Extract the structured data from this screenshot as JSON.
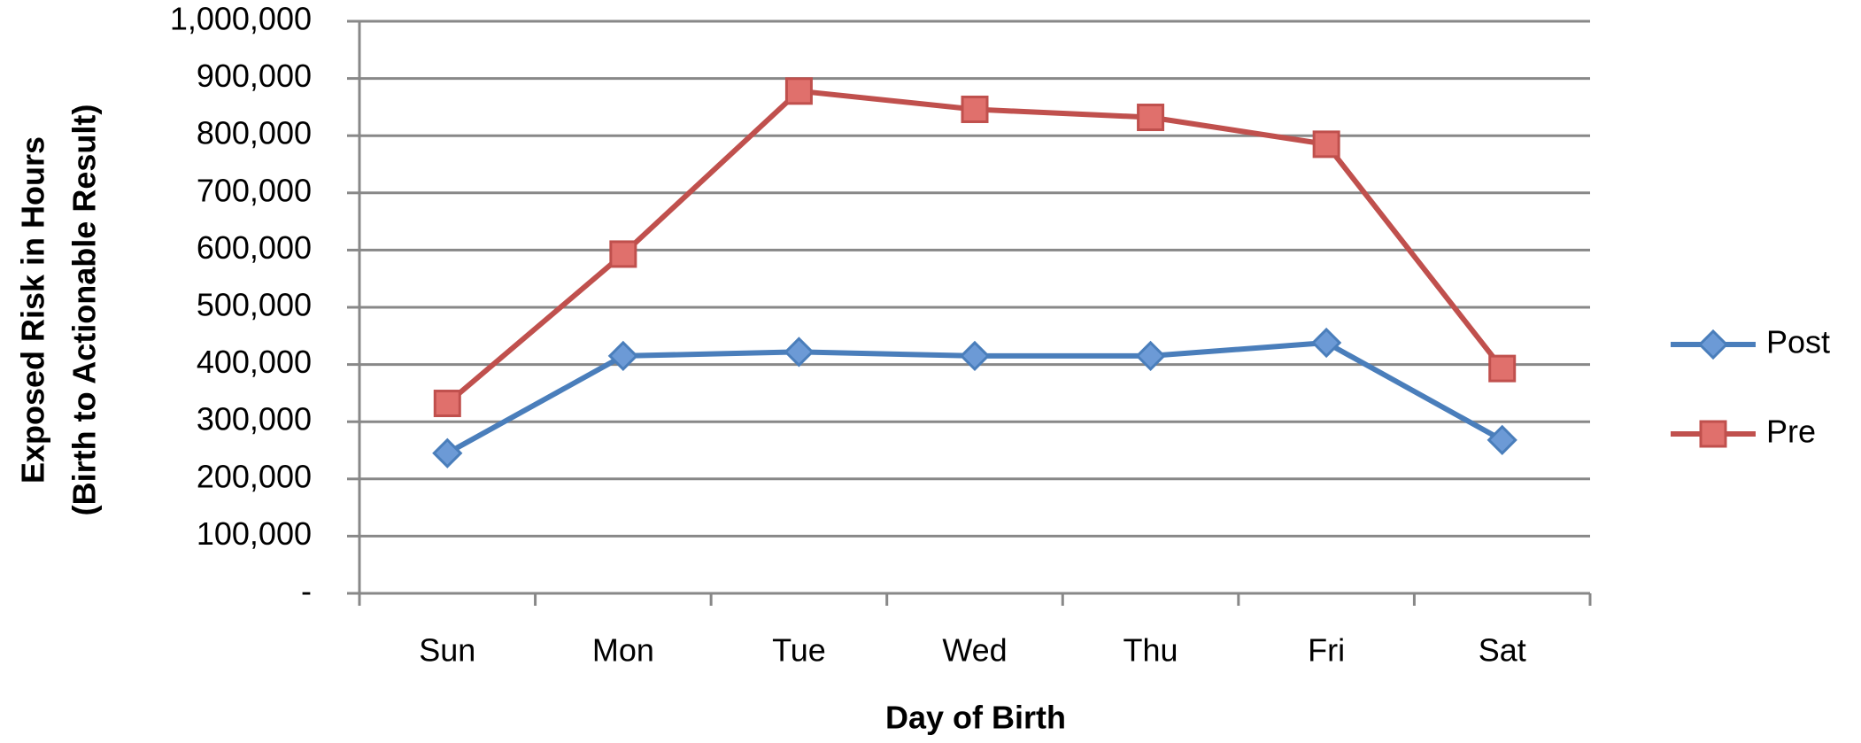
{
  "chart_data": {
    "type": "line",
    "xlabel": "Day of Birth",
    "ylabel": [
      "Exposed Risk in Hours",
      "(Birth to Actionable Result)"
    ],
    "categories": [
      "Sun",
      "Mon",
      "Tue",
      "Wed",
      "Thu",
      "Fri",
      "Sat"
    ],
    "series": [
      {
        "name": "Post",
        "color": "#4a7ebb",
        "marker": "diamond",
        "values": [
          245000,
          415000,
          422000,
          415000,
          415000,
          438000,
          268000
        ]
      },
      {
        "name": "Pre",
        "color": "#c0504d",
        "marker": "square",
        "values": [
          332000,
          593000,
          878000,
          846000,
          832000,
          785000,
          393000
        ]
      }
    ],
    "ylim": [
      0,
      1000000
    ],
    "yticks": [
      {
        "value": 0,
        "label": "-"
      },
      {
        "value": 100000,
        "label": "100,000"
      },
      {
        "value": 200000,
        "label": "200,000"
      },
      {
        "value": 300000,
        "label": "300,000"
      },
      {
        "value": 400000,
        "label": "400,000"
      },
      {
        "value": 500000,
        "label": "500,000"
      },
      {
        "value": 600000,
        "label": "600,000"
      },
      {
        "value": 700000,
        "label": "700,000"
      },
      {
        "value": 800000,
        "label": "800,000"
      },
      {
        "value": 900000,
        "label": "900,000"
      },
      {
        "value": 1000000,
        "label": "1,000,000"
      }
    ],
    "grid": true,
    "legend": "right"
  }
}
